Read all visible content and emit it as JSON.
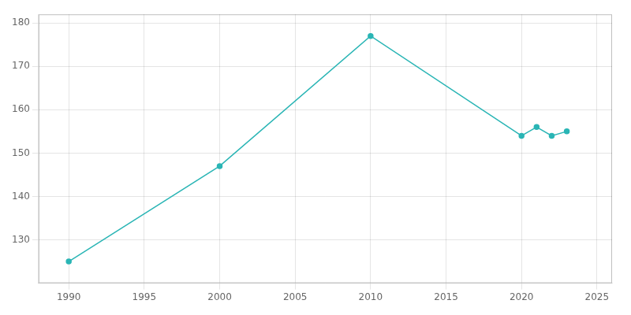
{
  "chart_data": {
    "type": "line",
    "x": [
      1990,
      2000,
      2010,
      2020,
      2021,
      2022,
      2023
    ],
    "values": [
      125,
      147,
      177,
      154,
      156,
      154,
      155
    ],
    "color": "#2ab5b5",
    "marker": "circle",
    "xlim": [
      1988,
      2026
    ],
    "ylim": [
      120,
      182
    ],
    "xticks": [
      1990,
      1995,
      2000,
      2005,
      2010,
      2015,
      2020,
      2025
    ],
    "yticks": [
      130,
      140,
      150,
      160,
      170,
      180
    ],
    "grid": true
  }
}
